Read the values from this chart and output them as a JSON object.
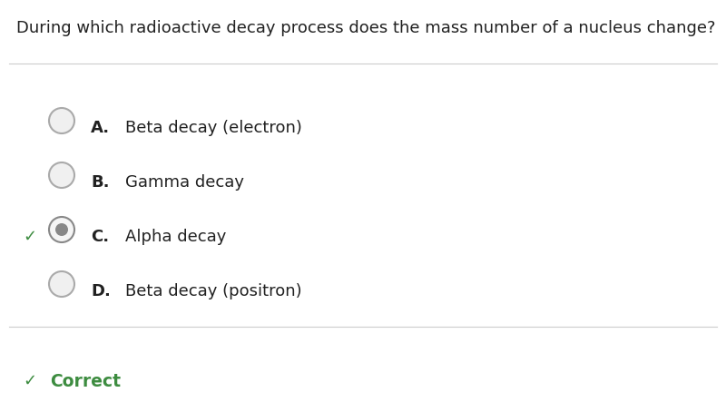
{
  "question": "During which radioactive decay process does the mass number of a nucleus change?",
  "options": [
    {
      "label": "A.",
      "text": "Beta decay (electron)",
      "selected": false,
      "correct": false
    },
    {
      "label": "B.",
      "text": "Gamma decay",
      "selected": false,
      "correct": false
    },
    {
      "label": "C.",
      "text": "Alpha decay",
      "selected": true,
      "correct": true
    },
    {
      "label": "D.",
      "text": "Beta decay (positron)",
      "selected": false,
      "correct": false
    }
  ],
  "correct_text": "Correct",
  "bg_color": "#ffffff",
  "question_color": "#212121",
  "option_label_color": "#212121",
  "option_text_color": "#212121",
  "correct_color": "#3d8c40",
  "circle_edge_color": "#aaaaaa",
  "circle_fill_color": "#f0f0f0",
  "selected_outer_edge_color": "#888888",
  "selected_outer_fill_color": "#f5f5f5",
  "selected_inner_fill_color": "#888888",
  "divider_color": "#cccccc",
  "check_color": "#3d8c40",
  "question_fontsize": 13.0,
  "option_fontsize": 13.0,
  "correct_fontsize": 13.5,
  "label_fontweight": "bold"
}
